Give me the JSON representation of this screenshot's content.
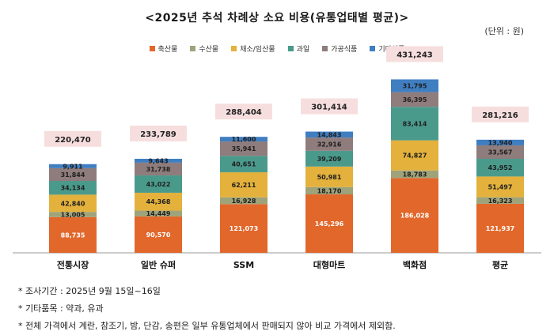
{
  "title": "<2025년 추석 차례상 소요 비용(유통업태별 평균)>",
  "unit": "(단위 : 원)",
  "notes": [
    "* 조사기간 : 2025년 9월 15일~16일",
    "* 기타품목 : 약과, 유과",
    "* 전체 가격에서 계란, 참조기, 밤, 단감, 송편은 일부 유통업체에서 판매되지 않아 비교 가격에서 제외함."
  ],
  "colors": {
    "meat": "#e2672b",
    "seafood": "#9fa37a",
    "vegetables": "#e3b13c",
    "fruit": "#4a9a8c",
    "processed": "#8f7c7c",
    "other": "#3f7ec1",
    "total_box": "#f7dede"
  },
  "chart_data": {
    "type": "bar",
    "stacked": true,
    "title": "<2025년 추석 차례상 소요 비용(유통업태별 평균)>",
    "categories": [
      "전통시장",
      "일반 슈퍼",
      "SSM",
      "대형마트",
      "백화점",
      "평균"
    ],
    "series": [
      {
        "name": "축산물",
        "color_key": "meat",
        "values": [
          88735,
          90570,
          121073,
          145296,
          186028,
          121937
        ]
      },
      {
        "name": "수산물",
        "color_key": "seafood",
        "values": [
          13005,
          14449,
          16928,
          18170,
          18783,
          16323
        ]
      },
      {
        "name": "채소/임산물",
        "color_key": "vegetables",
        "values": [
          42840,
          44368,
          62211,
          50981,
          74827,
          51497
        ]
      },
      {
        "name": "과일",
        "color_key": "fruit",
        "values": [
          34134,
          43022,
          40651,
          39209,
          83414,
          43952
        ]
      },
      {
        "name": "가공식품",
        "color_key": "processed",
        "values": [
          31844,
          31738,
          35941,
          32916,
          36395,
          33567
        ]
      },
      {
        "name": "기타식품",
        "color_key": "other",
        "values": [
          9911,
          9643,
          11600,
          14843,
          31795,
          13940
        ]
      }
    ],
    "series_labels": [
      [
        "88,735",
        "90,570",
        "121,073",
        "145,296",
        "186,028",
        "121,937"
      ],
      [
        "13,005",
        "14,449",
        "16,928",
        "18,170",
        "18,783",
        "16,323"
      ],
      [
        "42,840",
        "44,368",
        "62,211",
        "50,981",
        "74,827",
        "51,497"
      ],
      [
        "34,134",
        "43,022",
        "40,651",
        "39,209",
        "83,414",
        "43,952"
      ],
      [
        "31,844",
        "31,738",
        "35,941",
        "32,916",
        "36,395",
        "33,567"
      ],
      [
        "9,911",
        "9,643",
        "11,600",
        "14,843",
        "31,795",
        "13,940"
      ]
    ],
    "totals": [
      220470,
      233789,
      288404,
      301414,
      431243,
      281216
    ],
    "total_labels": [
      "220,470",
      "233,789",
      "288,404",
      "301,414",
      "431,243",
      "281,216"
    ],
    "ylim": [
      0,
      440000
    ],
    "legend_position": "top-center",
    "grid": false
  }
}
